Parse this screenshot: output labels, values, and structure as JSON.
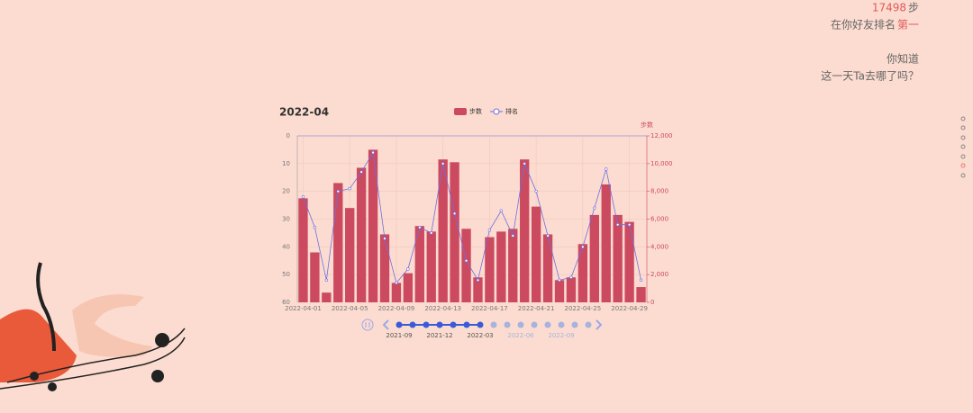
{
  "chart_data": {
    "type": "bar-line",
    "title": "2022-04",
    "categories": [
      "2022-04-01",
      null,
      null,
      null,
      "2022-04-05",
      null,
      null,
      null,
      "2022-04-09",
      null,
      null,
      null,
      "2022-04-13",
      null,
      null,
      null,
      "2022-04-17",
      null,
      null,
      null,
      "2022-04-21",
      null,
      null,
      null,
      "2022-04-25",
      null,
      null,
      null,
      "2022-04-29",
      null
    ],
    "series": [
      {
        "name": "步数",
        "type": "bar",
        "axis": "y2",
        "color": "#cc4a60",
        "values": [
          7500,
          3600,
          700,
          8600,
          6800,
          9700,
          11000,
          4900,
          1400,
          2100,
          5500,
          5100,
          10300,
          10100,
          5300,
          1800,
          4700,
          5100,
          5300,
          10300,
          6900,
          4900,
          1600,
          1800,
          4200,
          6300,
          8500,
          6300,
          5800,
          1100
        ]
      },
      {
        "name": "排名",
        "type": "line",
        "color": "#6e6ee0",
        "values": [
          22,
          33,
          52,
          20,
          19,
          13,
          6,
          37,
          53,
          48,
          33,
          35,
          10,
          28,
          45,
          52,
          34,
          27,
          36,
          10,
          20,
          36,
          52,
          51,
          40,
          26,
          12,
          32,
          32,
          52
        ]
      }
    ],
    "ylim": [
      0,
      60
    ],
    "y_inverted": true,
    "yticks": [
      0,
      10,
      20,
      30,
      40,
      50,
      60
    ],
    "y2_label": "步数",
    "y2lim": [
      0,
      12000
    ],
    "y2ticks": [
      0,
      {
        "value": 2000,
        "label": "2,000"
      },
      {
        "value": 4000,
        "label": "4,000"
      },
      {
        "value": 6000,
        "label": "6,000"
      },
      {
        "value": 8000,
        "label": "8,000"
      },
      {
        "value": 10000,
        "label": "10,000"
      },
      {
        "value": 12000,
        "label": "12,000"
      }
    ],
    "grid": true,
    "legend": "top"
  },
  "info": {
    "steps": "17498",
    "steps_unit": "步",
    "rank_prefix": "在你好友排名",
    "rank": "第一",
    "question_1": "你知道",
    "question_2": "这一天Ta去哪了吗？"
  },
  "timeline": {
    "labels": [
      "2021-09",
      "2021-12",
      "2022-03",
      "2022-06",
      "2022-09"
    ]
  }
}
